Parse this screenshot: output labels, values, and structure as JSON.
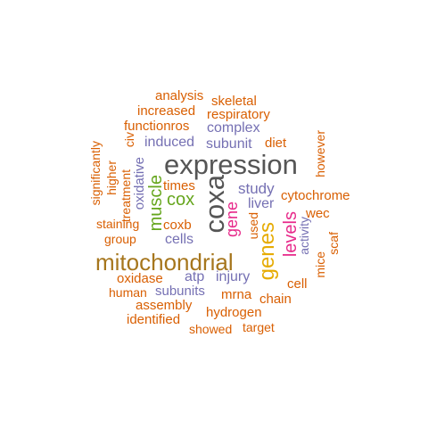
{
  "colors": {
    "orange": "#d95f02",
    "purple": "#7570b3",
    "magenta": "#e7298a",
    "green": "#66a61e",
    "gold": "#e6ab02",
    "brown": "#a6761d",
    "gray": "#555555"
  },
  "words": [
    {
      "text": "analysis",
      "color": "orange"
    },
    {
      "text": "skeletal",
      "color": "orange"
    },
    {
      "text": "increased",
      "color": "orange"
    },
    {
      "text": "respiratory",
      "color": "orange"
    },
    {
      "text": "functionros",
      "color": "orange"
    },
    {
      "text": "complex",
      "color": "purple"
    },
    {
      "text": "civ",
      "color": "orange"
    },
    {
      "text": "induced",
      "color": "purple"
    },
    {
      "text": "subunit",
      "color": "purple"
    },
    {
      "text": "diet",
      "color": "orange"
    },
    {
      "text": "however",
      "color": "orange"
    },
    {
      "text": "significantly",
      "color": "orange"
    },
    {
      "text": "expression",
      "color": "gray"
    },
    {
      "text": "higher",
      "color": "orange"
    },
    {
      "text": "oxidative",
      "color": "purple"
    },
    {
      "text": "treatment",
      "color": "orange"
    },
    {
      "text": "times",
      "color": "orange"
    },
    {
      "text": "study",
      "color": "purple"
    },
    {
      "text": "cytochrome",
      "color": "orange"
    },
    {
      "text": "muscle",
      "color": "green"
    },
    {
      "text": "cox",
      "color": "green"
    },
    {
      "text": "coxa",
      "color": "gray"
    },
    {
      "text": "liver",
      "color": "purple"
    },
    {
      "text": "wec",
      "color": "orange"
    },
    {
      "text": "staining",
      "color": "orange"
    },
    {
      "text": "coxb",
      "color": "orange"
    },
    {
      "text": "gene",
      "color": "magenta"
    },
    {
      "text": "used",
      "color": "orange"
    },
    {
      "text": "levels",
      "color": "magenta"
    },
    {
      "text": "activity",
      "color": "purple"
    },
    {
      "text": "scaf",
      "color": "orange"
    },
    {
      "text": "group",
      "color": "orange"
    },
    {
      "text": "cells",
      "color": "purple"
    },
    {
      "text": "mitochondrial",
      "color": "brown"
    },
    {
      "text": "genes",
      "color": "gold"
    },
    {
      "text": "mice",
      "color": "orange"
    },
    {
      "text": "oxidase",
      "color": "orange"
    },
    {
      "text": "atp",
      "color": "purple"
    },
    {
      "text": "injury",
      "color": "purple"
    },
    {
      "text": "cell",
      "color": "orange"
    },
    {
      "text": "human",
      "color": "orange"
    },
    {
      "text": "subunits",
      "color": "purple"
    },
    {
      "text": "mrna",
      "color": "orange"
    },
    {
      "text": "chain",
      "color": "orange"
    },
    {
      "text": "assembly",
      "color": "orange"
    },
    {
      "text": "hydrogen",
      "color": "orange"
    },
    {
      "text": "identified",
      "color": "orange"
    },
    {
      "text": "showed",
      "color": "orange"
    },
    {
      "text": "target",
      "color": "orange"
    }
  ]
}
